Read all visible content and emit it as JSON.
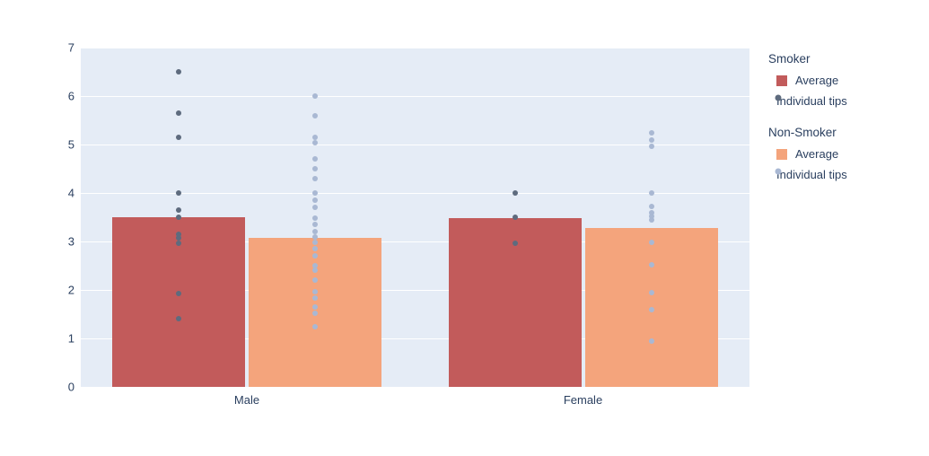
{
  "plot": {
    "background_color": "#E5ECF6",
    "gridline_color": "#ffffff",
    "axis_text_color": "#2a3f5f"
  },
  "chart_data": {
    "type": "bar",
    "title": "",
    "xlabel": "",
    "ylabel": "",
    "grid": true,
    "legend_position": "right",
    "categories": [
      "Male",
      "Female"
    ],
    "ylim": [
      0,
      7
    ],
    "yticks": [
      0,
      1,
      2,
      3,
      4,
      5,
      6,
      7
    ],
    "series": [
      {
        "group": "Smoker",
        "bar_label": "Average",
        "points_label": "Individual tips",
        "bar_color": "#C25B5B",
        "point_color": "#5E6B7E",
        "averages": [
          3.5,
          3.48
        ],
        "individual_tips": [
          [
            6.5,
            5.65,
            5.15,
            4.0,
            3.65,
            3.5,
            3.14,
            3.07,
            2.96,
            1.93,
            1.4
          ],
          [
            4.0,
            3.5,
            2.97
          ]
        ]
      },
      {
        "group": "Non-Smoker",
        "bar_label": "Average",
        "points_label": "Individual tips",
        "bar_color": "#F4A47C",
        "point_color": "#A9B8D3",
        "averages": [
          3.07,
          3.28
        ],
        "individual_tips": [
          [
            6.0,
            5.6,
            5.15,
            5.03,
            4.7,
            4.5,
            4.3,
            4.0,
            3.86,
            3.7,
            3.48,
            3.36,
            3.2,
            3.1,
            2.98,
            2.86,
            2.7,
            2.5,
            2.4,
            2.2,
            1.96,
            1.84,
            1.65,
            1.52,
            1.25
          ],
          [
            5.25,
            5.1,
            4.97,
            4.0,
            3.73,
            3.6,
            3.52,
            3.45,
            2.98,
            2.52,
            1.94,
            1.6,
            0.95
          ]
        ]
      }
    ]
  }
}
